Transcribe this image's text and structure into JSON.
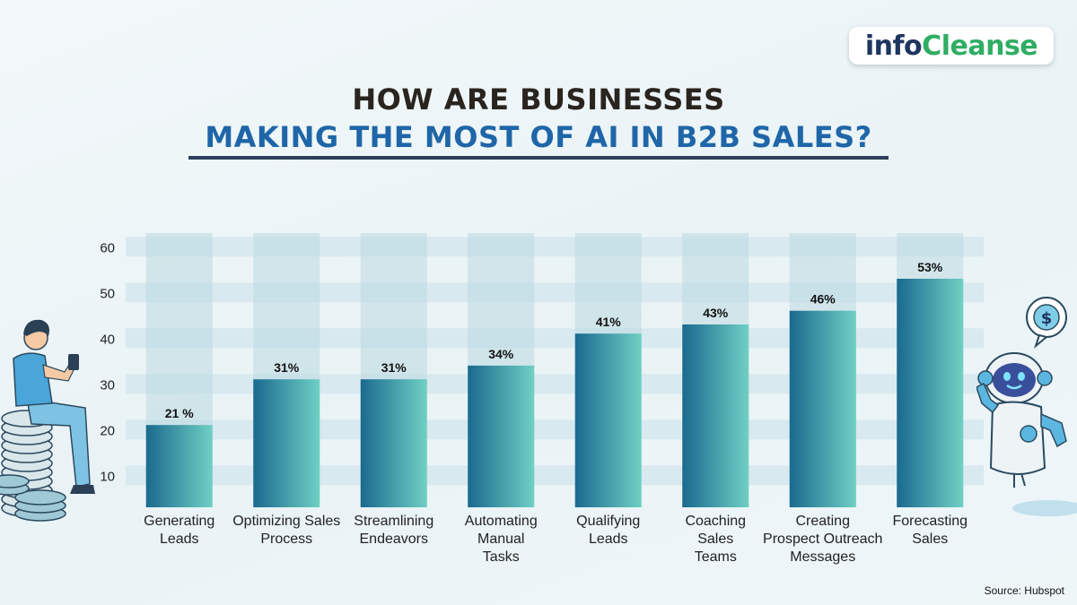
{
  "brand": {
    "part1": "info",
    "part2": "Cleanse"
  },
  "title_line1": "HOW ARE BUSINESSES",
  "title_line2": "MAKING THE MOST OF AI IN B2B SALES?",
  "source": "Source: Hubspot",
  "colors": {
    "bar_dark": "#1a6a8f",
    "bar_light": "#6fd0c4",
    "column_bg": "#bcd8e0",
    "band": "#d8e9ef",
    "title_dark": "#2a241f",
    "title_blue": "#1f66a8"
  },
  "illustrations": [
    "person-on-coins-icon",
    "robot-dollar-icon"
  ],
  "chart_data": {
    "type": "bar",
    "categories": [
      [
        "Generating",
        "Leads"
      ],
      [
        "Optimizing Sales",
        "Process"
      ],
      [
        "Streamlining",
        "Endeavors"
      ],
      [
        "Automating",
        "Manual",
        "Tasks"
      ],
      [
        "Qualifying",
        "Leads"
      ],
      [
        "Coaching",
        "Sales",
        "Teams"
      ],
      [
        "Creating",
        "Prospect Outreach",
        "Messages"
      ],
      [
        "Forecasting",
        "Sales"
      ]
    ],
    "values": [
      21,
      31,
      31,
      34,
      41,
      43,
      46,
      53
    ],
    "labels": [
      "21 %",
      "31%",
      "31%",
      "34%",
      "41%",
      "43%",
      "46%",
      "53%"
    ],
    "yticks": [
      10,
      20,
      30,
      40,
      50,
      60
    ],
    "ylim": [
      3,
      63
    ],
    "grid": "horizontal bands"
  }
}
